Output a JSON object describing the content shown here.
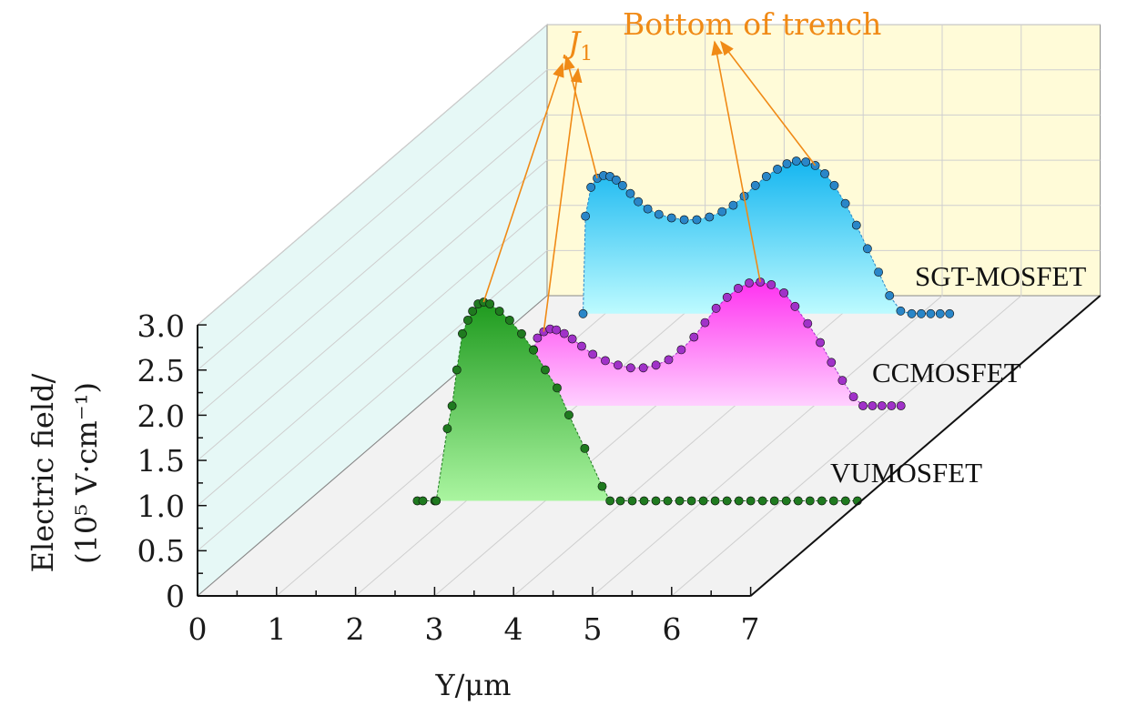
{
  "chart_data": {
    "type": "line",
    "title": "",
    "xlabel": "Y/μm",
    "ylabel": "Electric field/",
    "ylabel_unit": "(10⁵ V·cm⁻¹)",
    "xlim": [
      0,
      7
    ],
    "ylim": [
      0,
      3.0
    ],
    "x_ticks": [
      "0",
      "1",
      "2",
      "3",
      "4",
      "5",
      "6",
      "7"
    ],
    "y_ticks": [
      "0",
      "0.5",
      "1.0",
      "1.5",
      "2.0",
      "2.5",
      "3.0"
    ],
    "depth_order": [
      "VUMOSFET",
      "CCMOSFET",
      "SGT-MOSFET"
    ],
    "annotations": {
      "j1": "J",
      "j1_sub": "1",
      "trench": "Bottom of trench"
    },
    "colors": {
      "annotation": "#f08a16",
      "grid": "#cfcfcf"
    },
    "series": [
      {
        "name": "VUMOSFET",
        "color": "#1f7a1f",
        "fill_top": "#1e9a1e",
        "fill_bottom": "#aaf5a0",
        "x": [
          1.38,
          1.45,
          1.6,
          1.62,
          1.76,
          1.82,
          1.88,
          1.95,
          2.02,
          2.08,
          2.15,
          2.22,
          2.3,
          2.42,
          2.55,
          2.7,
          2.85,
          3.0,
          3.15,
          3.3,
          3.5,
          3.72,
          3.82,
          3.95,
          4.1,
          4.25,
          4.4,
          4.55,
          4.7,
          4.85,
          5.0,
          5.15,
          5.3,
          5.45,
          5.6,
          5.75,
          5.9,
          6.05,
          6.2,
          6.35,
          6.5,
          6.65,
          6.8,
          6.95
        ],
        "values": [
          0,
          0,
          0,
          0,
          0.8,
          1.05,
          1.45,
          1.85,
          2.0,
          2.1,
          2.18,
          2.2,
          2.18,
          2.1,
          2.0,
          1.85,
          1.67,
          1.45,
          1.25,
          0.95,
          0.58,
          0.16,
          0,
          0,
          0,
          0,
          0,
          0,
          0,
          0,
          0,
          0,
          0,
          0,
          0,
          0,
          0,
          0,
          0,
          0,
          0,
          0,
          0,
          0
        ]
      },
      {
        "name": "CCMOSFET",
        "color": "#a032c8",
        "fill_top": "#ff33f0",
        "fill_bottom": "#ffd0ff",
        "x": [
          1.42,
          1.45,
          1.5,
          1.58,
          1.66,
          1.74,
          1.84,
          1.94,
          2.06,
          2.2,
          2.36,
          2.52,
          2.68,
          2.84,
          3.0,
          3.16,
          3.32,
          3.48,
          3.62,
          3.76,
          3.9,
          4.04,
          4.18,
          4.32,
          4.46,
          4.62,
          4.76,
          4.92,
          5.08,
          5.22,
          5.36,
          5.5,
          5.62,
          5.74,
          5.86,
          5.98,
          6.1
        ],
        "values": [
          0,
          0.62,
          0.75,
          0.82,
          0.85,
          0.84,
          0.8,
          0.74,
          0.66,
          0.57,
          0.5,
          0.45,
          0.42,
          0.42,
          0.45,
          0.51,
          0.62,
          0.76,
          0.92,
          1.08,
          1.2,
          1.3,
          1.36,
          1.37,
          1.34,
          1.25,
          1.1,
          0.91,
          0.7,
          0.48,
          0.28,
          0.1,
          0,
          0,
          0,
          0,
          0
        ]
      },
      {
        "name": "SGT-MOSFET",
        "color": "#2a86c8",
        "fill_top": "#15b6f0",
        "fill_bottom": "#bdfbff",
        "x": [
          0.72,
          0.75,
          0.82,
          0.9,
          0.98,
          1.06,
          1.14,
          1.22,
          1.32,
          1.42,
          1.54,
          1.68,
          1.84,
          2.0,
          2.16,
          2.32,
          2.48,
          2.62,
          2.76,
          2.9,
          3.04,
          3.18,
          3.3,
          3.42,
          3.54,
          3.66,
          3.78,
          3.9,
          4.04,
          4.18,
          4.32,
          4.46,
          4.6,
          4.74,
          4.88,
          5.0,
          5.12,
          5.24,
          5.36
        ],
        "values": [
          0,
          1.08,
          1.4,
          1.5,
          1.53,
          1.52,
          1.48,
          1.42,
          1.33,
          1.24,
          1.16,
          1.1,
          1.06,
          1.04,
          1.04,
          1.07,
          1.13,
          1.2,
          1.3,
          1.42,
          1.52,
          1.6,
          1.66,
          1.69,
          1.68,
          1.64,
          1.55,
          1.42,
          1.22,
          0.98,
          0.72,
          0.46,
          0.2,
          0.03,
          0,
          0,
          0,
          0,
          0
        ]
      }
    ]
  }
}
